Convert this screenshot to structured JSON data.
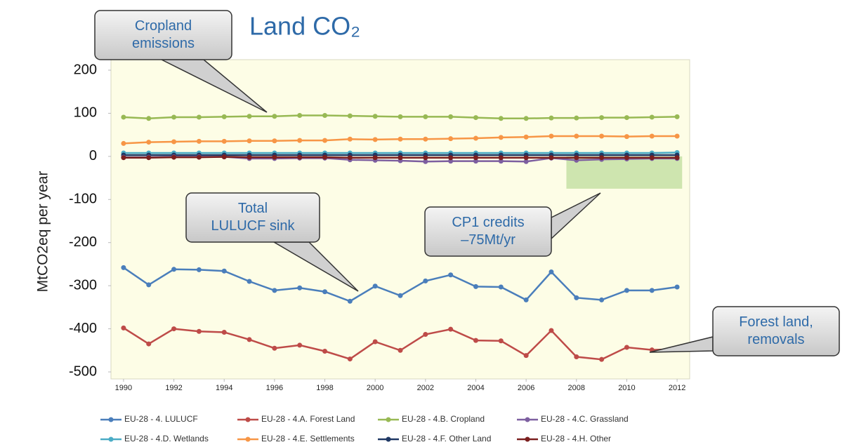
{
  "chart_data": {
    "type": "line",
    "title": "Land CO₂",
    "y_label": "MtCO2eq per year",
    "x": [
      1990,
      1991,
      1992,
      1993,
      1994,
      1995,
      1996,
      1997,
      1998,
      1999,
      2000,
      2001,
      2002,
      2003,
      2004,
      2005,
      2006,
      2007,
      2008,
      2009,
      2010,
      2011,
      2012
    ],
    "xlim": [
      1989.5,
      2012.5
    ],
    "xticks": [
      1990,
      1992,
      1994,
      1996,
      1998,
      2000,
      2002,
      2004,
      2006,
      2008,
      2010,
      2012
    ],
    "ylim": [
      -500,
      200
    ],
    "yticks": [
      200,
      100,
      0,
      -100,
      -200,
      -300,
      -400,
      -500
    ],
    "series": [
      {
        "name": "EU-28 - 4. LULUCF",
        "color": "#4a7ebb",
        "values": [
          -258,
          -298,
          -262,
          -263,
          -266,
          -290,
          -311,
          -305,
          -314,
          -336,
          -301,
          -323,
          -289,
          -275,
          -302,
          -303,
          -333,
          -268,
          -328,
          -333,
          -311,
          -311,
          -303
        ]
      },
      {
        "name": "EU-28 - 4.A. Forest Land",
        "color": "#be4b48",
        "values": [
          -398,
          -435,
          -400,
          -406,
          -408,
          -425,
          -445,
          -438,
          -452,
          -470,
          -430,
          -450,
          -413,
          -401,
          -427,
          -428,
          -462,
          -404,
          -465,
          -471,
          -443,
          -449,
          -447
        ]
      },
      {
        "name": "EU-28 - 4.B. Cropland",
        "color": "#98b954",
        "values": [
          91,
          88,
          91,
          91,
          92,
          93,
          93,
          95,
          95,
          94,
          93,
          92,
          92,
          92,
          90,
          88,
          88,
          89,
          89,
          90,
          90,
          91,
          92
        ]
      },
      {
        "name": "EU-28 - 4.C. Grassland",
        "color": "#7d5fa0",
        "values": [
          -2,
          -2,
          -1,
          -1,
          -1,
          -5,
          -5,
          -4,
          -4,
          -8,
          -9,
          -10,
          -12,
          -11,
          -11,
          -11,
          -12,
          -4,
          -9,
          -7,
          -6,
          -5,
          -5
        ]
      },
      {
        "name": "EU-28 - 4.D. Wetlands",
        "color": "#4bacc6",
        "values": [
          8,
          8,
          8,
          8,
          8,
          8,
          8,
          8,
          8,
          8,
          8,
          8,
          8,
          8,
          8,
          8,
          8,
          8,
          8,
          8,
          8,
          8,
          9
        ]
      },
      {
        "name": "EU-28 - 4.E. Settlements",
        "color": "#f79646",
        "values": [
          30,
          33,
          34,
          35,
          35,
          36,
          36,
          37,
          37,
          40,
          39,
          40,
          40,
          41,
          42,
          44,
          45,
          47,
          47,
          47,
          46,
          47,
          47
        ]
      },
      {
        "name": "EU-28 - 4.F. Other Land",
        "color": "#1f3864",
        "values": [
          3,
          3,
          3,
          3,
          3,
          3,
          3,
          3,
          3,
          3,
          3,
          3,
          3,
          3,
          3,
          3,
          3,
          3,
          3,
          3,
          3,
          3,
          3
        ]
      },
      {
        "name": "EU-28 - 4.H. Other",
        "color": "#7b1f1f",
        "values": [
          -3,
          -3,
          -2,
          -2,
          -1,
          -2,
          -2,
          -2,
          -2,
          -3,
          -3,
          -3,
          -3,
          -3,
          -3,
          -3,
          -3,
          -3,
          -3,
          -3,
          -3,
          -3,
          -3
        ]
      }
    ],
    "shaded_region": {
      "xlim": [
        2007.6,
        2012.2
      ],
      "ylim": [
        -75,
        0
      ],
      "color": "#c5e0a5"
    },
    "annotations": [
      {
        "lines": [
          "Cropland",
          "emissions"
        ]
      },
      {
        "lines": [
          "Total",
          "LULUCF sink"
        ]
      },
      {
        "lines": [
          "CP1 credits",
          "–75Mt/yr"
        ]
      },
      {
        "lines": [
          "Forest land,",
          "removals"
        ]
      }
    ]
  }
}
